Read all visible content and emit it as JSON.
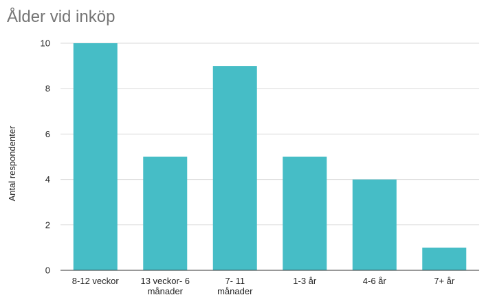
{
  "chart_data": {
    "type": "bar",
    "title": "Ålder vid inköp",
    "xlabel": "",
    "ylabel": "Antal respondenter",
    "categories": [
      [
        "8-12 veckor"
      ],
      [
        "13 veckor- 6",
        "månader"
      ],
      [
        "7- 11",
        "månader"
      ],
      [
        "1-3 år"
      ],
      [
        "4-6 år"
      ],
      [
        "7+ år"
      ]
    ],
    "values": [
      10,
      5,
      9,
      5,
      4,
      1
    ],
    "ylim": [
      0,
      10
    ],
    "yticks": [
      0,
      2,
      4,
      6,
      8,
      10
    ],
    "grid": true,
    "bar_color": "#46bdc6",
    "gridline_color": "#d9d9d9",
    "axis_color": "#333333"
  }
}
